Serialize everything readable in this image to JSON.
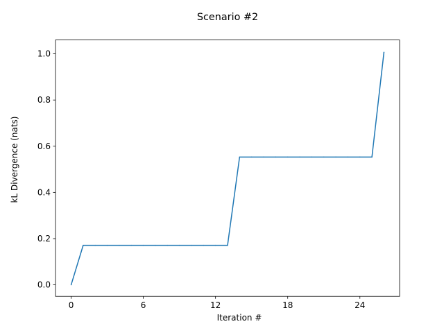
{
  "chart_data": {
    "type": "line",
    "title": "Scenario #2",
    "xlabel": "Iteration #",
    "ylabel": "kL Divergence (nats)",
    "xlim": [
      -1.3,
      27.3
    ],
    "ylim": [
      -0.05,
      1.06
    ],
    "xticks": [
      0,
      6,
      12,
      18,
      24
    ],
    "xtick_labels": [
      "0",
      "6",
      "12",
      "18",
      "24"
    ],
    "yticks": [
      0.0,
      0.2,
      0.4,
      0.6,
      0.8,
      1.0
    ],
    "ytick_labels": [
      "0.0",
      "0.2",
      "0.4",
      "0.6",
      "0.8",
      "1.0"
    ],
    "grid": false,
    "series": [
      {
        "color": "#1f77b4",
        "x": [
          0,
          1,
          2,
          3,
          4,
          5,
          6,
          7,
          8,
          9,
          10,
          11,
          12,
          13,
          14,
          15,
          16,
          17,
          18,
          19,
          20,
          21,
          22,
          23,
          24,
          25,
          26
        ],
        "y": [
          0.0,
          0.171,
          0.171,
          0.171,
          0.171,
          0.171,
          0.171,
          0.171,
          0.171,
          0.171,
          0.171,
          0.171,
          0.171,
          0.171,
          0.553,
          0.553,
          0.553,
          0.553,
          0.553,
          0.553,
          0.553,
          0.553,
          0.553,
          0.553,
          0.553,
          0.553,
          1.007
        ]
      }
    ]
  }
}
